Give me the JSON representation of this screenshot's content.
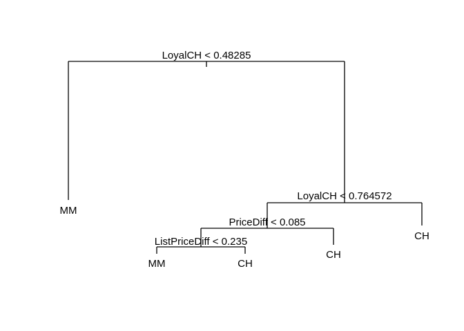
{
  "tree": {
    "root": {
      "split": "LoyalCH < 0.48285",
      "left": {
        "leaf": "MM"
      },
      "right": {
        "split": "LoyalCH < 0.764572",
        "left": {
          "split": "PriceDiff < 0.085",
          "left": {
            "split": "ListPriceDiff < 0.235",
            "left": {
              "leaf": "MM"
            },
            "right": {
              "leaf": "CH"
            }
          },
          "right": {
            "leaf": "CH"
          }
        },
        "right": {
          "leaf": "CH"
        }
      }
    }
  }
}
